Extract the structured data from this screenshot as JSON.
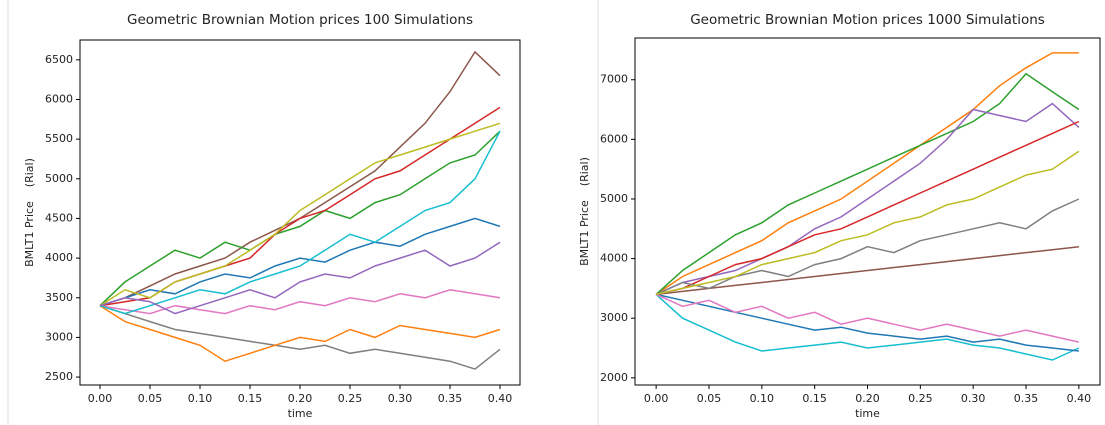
{
  "chart_data": [
    {
      "type": "line",
      "title": "Geometric Brownian Motion prices 100 Simulations",
      "xlabel": "time",
      "ylabel": "BMLT1 Price    (Rial)",
      "x": [
        0,
        0.025,
        0.05,
        0.075,
        0.1,
        0.125,
        0.15,
        0.175,
        0.2,
        0.225,
        0.25,
        0.275,
        0.3,
        0.325,
        0.35,
        0.375,
        0.4
      ],
      "xlim": [
        -0.02,
        0.42
      ],
      "xticks": [
        {
          "value": 0,
          "label": "0.00"
        },
        {
          "value": 0.05,
          "label": "0.05"
        },
        {
          "value": 0.1,
          "label": "0.10"
        },
        {
          "value": 0.15,
          "label": "0.15"
        },
        {
          "value": 0.2,
          "label": "0.20"
        },
        {
          "value": 0.25,
          "label": "0.25"
        },
        {
          "value": 0.3,
          "label": "0.30"
        },
        {
          "value": 0.35,
          "label": "0.35"
        },
        {
          "value": 0.4,
          "label": "0.40"
        }
      ],
      "ylim": [
        2400,
        6750
      ],
      "yticks": [
        2500,
        3000,
        3500,
        4000,
        4500,
        5000,
        5500,
        6000,
        6500
      ],
      "grid": false,
      "series": [
        {
          "color": "#8c564b",
          "values": [
            3400,
            3500,
            3650,
            3800,
            3900,
            4000,
            4200,
            4350,
            4500,
            4700,
            4900,
            5100,
            5400,
            5700,
            6100,
            6600,
            6300
          ]
        },
        {
          "color": "#7f7f7f",
          "values": [
            3400,
            3300,
            3200,
            3100,
            3050,
            3000,
            2950,
            2900,
            2850,
            2900,
            2800,
            2850,
            2800,
            2750,
            2700,
            2600,
            2850
          ]
        },
        {
          "color": "#2ca02c",
          "values": [
            3400,
            3700,
            3900,
            4100,
            4000,
            4200,
            4100,
            4300,
            4400,
            4600,
            4500,
            4700,
            4800,
            5000,
            5200,
            5300,
            5600
          ]
        },
        {
          "color": "#ff7f0e",
          "values": [
            3400,
            3200,
            3100,
            3000,
            2900,
            2700,
            2800,
            2900,
            3000,
            2950,
            3100,
            3000,
            3150,
            3100,
            3050,
            3000,
            3100
          ]
        },
        {
          "color": "#1f77b4",
          "values": [
            3400,
            3500,
            3600,
            3550,
            3700,
            3800,
            3750,
            3900,
            4000,
            3950,
            4100,
            4200,
            4150,
            4300,
            4400,
            4500,
            4400
          ]
        },
        {
          "color": "#d62728",
          "values": [
            3400,
            3450,
            3500,
            3700,
            3800,
            3900,
            4000,
            4300,
            4500,
            4600,
            4800,
            5000,
            5100,
            5300,
            5500,
            5700,
            5900
          ]
        },
        {
          "color": "#bcbd22",
          "values": [
            3400,
            3600,
            3500,
            3700,
            3800,
            3900,
            4100,
            4300,
            4600,
            4800,
            5000,
            5200,
            5300,
            5400,
            5500,
            5600,
            5700
          ]
        },
        {
          "color": "#e377c2",
          "values": [
            3400,
            3350,
            3300,
            3400,
            3350,
            3300,
            3400,
            3350,
            3450,
            3400,
            3500,
            3450,
            3550,
            3500,
            3600,
            3550,
            3500
          ]
        },
        {
          "color": "#17becf",
          "values": [
            3400,
            3300,
            3400,
            3500,
            3600,
            3550,
            3700,
            3800,
            3900,
            4100,
            4300,
            4200,
            4400,
            4600,
            4700,
            5000,
            5600
          ]
        },
        {
          "color": "#9467bd",
          "values": [
            3400,
            3500,
            3450,
            3300,
            3400,
            3500,
            3600,
            3500,
            3700,
            3800,
            3750,
            3900,
            4000,
            4100,
            3900,
            4000,
            4200
          ]
        }
      ]
    },
    {
      "type": "line",
      "title": "Geometric Brownian Motion prices 1000 Simulations",
      "xlabel": "time",
      "ylabel": "BMLT1 Price    (Rial)",
      "x": [
        0,
        0.025,
        0.05,
        0.075,
        0.1,
        0.125,
        0.15,
        0.175,
        0.2,
        0.225,
        0.25,
        0.275,
        0.3,
        0.325,
        0.35,
        0.375,
        0.4
      ],
      "xlim": [
        -0.02,
        0.42
      ],
      "xticks": [
        {
          "value": 0,
          "label": "0.00"
        },
        {
          "value": 0.05,
          "label": "0.05"
        },
        {
          "value": 0.1,
          "label": "0.10"
        },
        {
          "value": 0.15,
          "label": "0.15"
        },
        {
          "value": 0.2,
          "label": "0.20"
        },
        {
          "value": 0.25,
          "label": "0.25"
        },
        {
          "value": 0.3,
          "label": "0.30"
        },
        {
          "value": 0.35,
          "label": "0.35"
        },
        {
          "value": 0.4,
          "label": "0.40"
        }
      ],
      "ylim": [
        1880,
        7700
      ],
      "yticks": [
        2000,
        3000,
        4000,
        5000,
        6000,
        7000
      ],
      "grid": false,
      "series": [
        {
          "color": "#ff7f0e",
          "values": [
            3400,
            3700,
            3900,
            4100,
            4300,
            4600,
            4800,
            5000,
            5300,
            5600,
            5900,
            6200,
            6500,
            6900,
            7200,
            7450,
            7450
          ]
        },
        {
          "color": "#2ca02c",
          "values": [
            3400,
            3800,
            4100,
            4400,
            4600,
            4900,
            5100,
            5300,
            5500,
            5700,
            5900,
            6100,
            6300,
            6600,
            7100,
            6800,
            6500
          ]
        },
        {
          "color": "#17becf",
          "values": [
            3400,
            3000,
            2800,
            2600,
            2450,
            2500,
            2550,
            2600,
            2500,
            2550,
            2600,
            2650,
            2550,
            2500,
            2400,
            2300,
            2500
          ]
        },
        {
          "color": "#9467bd",
          "values": [
            3400,
            3600,
            3700,
            3800,
            4000,
            4200,
            4500,
            4700,
            5000,
            5300,
            5600,
            6000,
            6500,
            6400,
            6300,
            6600,
            6200
          ]
        },
        {
          "color": "#d62728",
          "values": [
            3400,
            3500,
            3700,
            3900,
            4000,
            4200,
            4400,
            4500,
            4700,
            4900,
            5100,
            5300,
            5500,
            5700,
            5900,
            6100,
            6300
          ]
        },
        {
          "color": "#1f77b4",
          "values": [
            3400,
            3300,
            3200,
            3100,
            3000,
            2900,
            2800,
            2850,
            2750,
            2700,
            2650,
            2700,
            2600,
            2650,
            2550,
            2500,
            2450
          ]
        },
        {
          "color": "#8c564b",
          "values": [
            3400,
            3450,
            3500,
            3550,
            3600,
            3650,
            3700,
            3750,
            3800,
            3850,
            3900,
            3950,
            4000,
            4050,
            4100,
            4150,
            4200
          ]
        },
        {
          "color": "#e377c2",
          "values": [
            3400,
            3200,
            3300,
            3100,
            3200,
            3000,
            3100,
            2900,
            3000,
            2900,
            2800,
            2900,
            2800,
            2700,
            2800,
            2700,
            2600
          ]
        },
        {
          "color": "#7f7f7f",
          "values": [
            3400,
            3600,
            3500,
            3700,
            3800,
            3700,
            3900,
            4000,
            4200,
            4100,
            4300,
            4400,
            4500,
            4600,
            4500,
            4800,
            5000
          ]
        },
        {
          "color": "#bcbd22",
          "values": [
            3400,
            3500,
            3600,
            3700,
            3900,
            4000,
            4100,
            4300,
            4400,
            4600,
            4700,
            4900,
            5000,
            5200,
            5400,
            5500,
            5800
          ]
        }
      ]
    }
  ]
}
